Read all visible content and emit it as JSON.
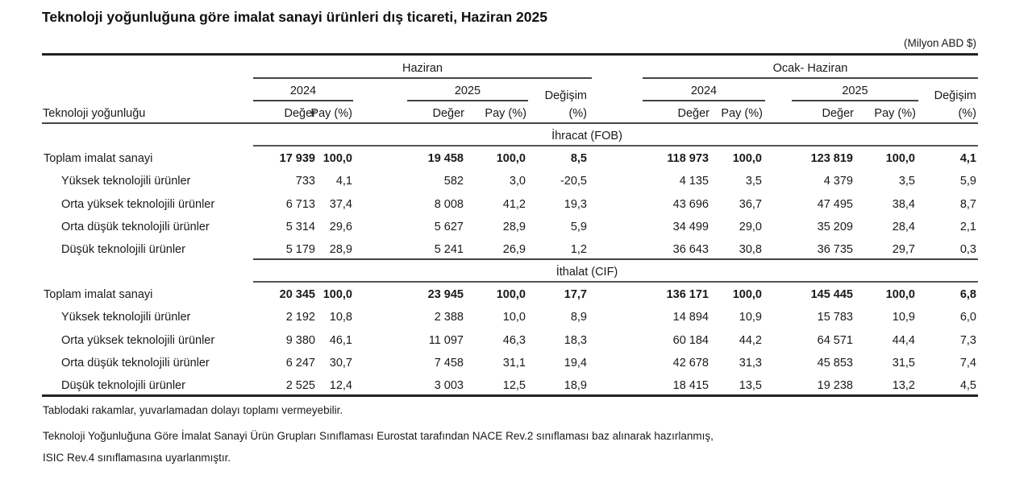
{
  "title": "Teknoloji yoğunluğuna göre imalat sanayi ürünleri dış ticareti, Haziran 2025",
  "unit": "(Milyon ABD $)",
  "header": {
    "row_label": "Teknoloji yoğunluğu",
    "period_monthly": "Haziran",
    "period_cumulative": "Ocak- Haziran",
    "year_prev": "2024",
    "year_curr": "2025",
    "value": "Değer",
    "share": "Pay (%)",
    "change_line1": "Değişim",
    "change_line2": "(%)"
  },
  "sections": [
    {
      "name": "İhracat (FOB)",
      "rows": [
        {
          "label": "Toplam imalat sanayi",
          "total": true,
          "cells": [
            "17 939",
            "100,0",
            "19 458",
            "100,0",
            "8,5",
            "118 973",
            "100,0",
            "123 819",
            "100,0",
            "4,1"
          ]
        },
        {
          "label": "Yüksek teknolojili ürünler",
          "total": false,
          "cells": [
            "733",
            "4,1",
            "582",
            "3,0",
            "-20,5",
            "4 135",
            "3,5",
            "4 379",
            "3,5",
            "5,9"
          ]
        },
        {
          "label": "Orta yüksek teknolojili ürünler",
          "total": false,
          "cells": [
            "6 713",
            "37,4",
            "8 008",
            "41,2",
            "19,3",
            "43 696",
            "36,7",
            "47 495",
            "38,4",
            "8,7"
          ]
        },
        {
          "label": "Orta düşük teknolojili ürünler",
          "total": false,
          "cells": [
            "5 314",
            "29,6",
            "5 627",
            "28,9",
            "5,9",
            "34 499",
            "29,0",
            "35 209",
            "28,4",
            "2,1"
          ]
        },
        {
          "label": "Düşük teknolojili ürünler",
          "total": false,
          "cells": [
            "5 179",
            "28,9",
            "5 241",
            "26,9",
            "1,2",
            "36 643",
            "30,8",
            "36 735",
            "29,7",
            "0,3"
          ]
        }
      ]
    },
    {
      "name": "İthalat (CIF)",
      "rows": [
        {
          "label": "Toplam imalat sanayi",
          "total": true,
          "cells": [
            "20 345",
            "100,0",
            "23 945",
            "100,0",
            "17,7",
            "136 171",
            "100,0",
            "145 445",
            "100,0",
            "6,8"
          ]
        },
        {
          "label": "Yüksek teknolojili ürünler",
          "total": false,
          "cells": [
            "2 192",
            "10,8",
            "2 388",
            "10,0",
            "8,9",
            "14 894",
            "10,9",
            "15 783",
            "10,9",
            "6,0"
          ]
        },
        {
          "label": "Orta yüksek teknolojili ürünler",
          "total": false,
          "cells": [
            "9 380",
            "46,1",
            "11 097",
            "46,3",
            "18,3",
            "60 184",
            "44,2",
            "64 571",
            "44,4",
            "7,3"
          ]
        },
        {
          "label": "Orta düşük teknolojili ürünler",
          "total": false,
          "cells": [
            "6 247",
            "30,7",
            "7 458",
            "31,1",
            "19,4",
            "42 678",
            "31,3",
            "45 853",
            "31,5",
            "7,4"
          ]
        },
        {
          "label": "Düşük teknolojili ürünler",
          "total": false,
          "cells": [
            "2 525",
            "12,4",
            "3 003",
            "12,5",
            "18,9",
            "18 415",
            "13,5",
            "19 238",
            "13,2",
            "4,5"
          ]
        }
      ]
    }
  ],
  "footnotes": [
    "Tablodaki rakamlar, yuvarlamadan dolayı toplamı vermeyebilir.",
    "Teknoloji Yoğunluğuna Göre İmalat Sanayi Ürün Grupları Sınıflaması Eurostat tarafından NACE Rev.2 sınıflaması baz alınarak hazırlanmış,",
    "ISIC Rev.4 sınıflamasına uyarlanmıştır."
  ],
  "chart_data": {
    "type": "table",
    "title": "Teknoloji yoğunluğuna göre imalat sanayi ürünleri dış ticareti, Haziran 2025",
    "unit": "Milyon ABD $",
    "columns": [
      "Haziran 2024 Değer",
      "Haziran 2024 Pay (%)",
      "Haziran 2025 Değer",
      "Haziran 2025 Pay (%)",
      "Haziran Değişim (%)",
      "Ocak-Haziran 2024 Değer",
      "Ocak-Haziran 2024 Pay (%)",
      "Ocak-Haziran 2025 Değer",
      "Ocak-Haziran 2025 Pay (%)",
      "Ocak-Haziran Değişim (%)"
    ],
    "series": [
      {
        "name": "İhracat (FOB) - Toplam imalat sanayi",
        "values": [
          17939,
          100.0,
          19458,
          100.0,
          8.5,
          118973,
          100.0,
          123819,
          100.0,
          4.1
        ]
      },
      {
        "name": "İhracat (FOB) - Yüksek teknolojili ürünler",
        "values": [
          733,
          4.1,
          582,
          3.0,
          -20.5,
          4135,
          3.5,
          4379,
          3.5,
          5.9
        ]
      },
      {
        "name": "İhracat (FOB) - Orta yüksek teknolojili ürünler",
        "values": [
          6713,
          37.4,
          8008,
          41.2,
          19.3,
          43696,
          36.7,
          47495,
          38.4,
          8.7
        ]
      },
      {
        "name": "İhracat (FOB) - Orta düşük teknolojili ürünler",
        "values": [
          5314,
          29.6,
          5627,
          28.9,
          5.9,
          34499,
          29.0,
          35209,
          28.4,
          2.1
        ]
      },
      {
        "name": "İhracat (FOB) - Düşük teknolojili ürünler",
        "values": [
          5179,
          28.9,
          5241,
          26.9,
          1.2,
          36643,
          30.8,
          36735,
          29.7,
          0.3
        ]
      },
      {
        "name": "İthalat (CIF) - Toplam imalat sanayi",
        "values": [
          20345,
          100.0,
          23945,
          100.0,
          17.7,
          136171,
          100.0,
          145445,
          100.0,
          6.8
        ]
      },
      {
        "name": "İthalat (CIF) - Yüksek teknolojili ürünler",
        "values": [
          2192,
          10.8,
          2388,
          10.0,
          8.9,
          14894,
          10.9,
          15783,
          10.9,
          6.0
        ]
      },
      {
        "name": "İthalat (CIF) - Orta yüksek teknolojili ürünler",
        "values": [
          9380,
          46.1,
          11097,
          46.3,
          18.3,
          60184,
          44.2,
          64571,
          44.4,
          7.3
        ]
      },
      {
        "name": "İthalat (CIF) - Orta düşük teknolojili ürünler",
        "values": [
          6247,
          30.7,
          7458,
          31.1,
          19.4,
          42678,
          31.3,
          45853,
          31.5,
          7.4
        ]
      },
      {
        "name": "İthalat (CIF) - Düşük teknolojili ürünler",
        "values": [
          2525,
          12.4,
          3003,
          12.5,
          18.9,
          18415,
          13.5,
          19238,
          13.2,
          4.5
        ]
      }
    ]
  }
}
